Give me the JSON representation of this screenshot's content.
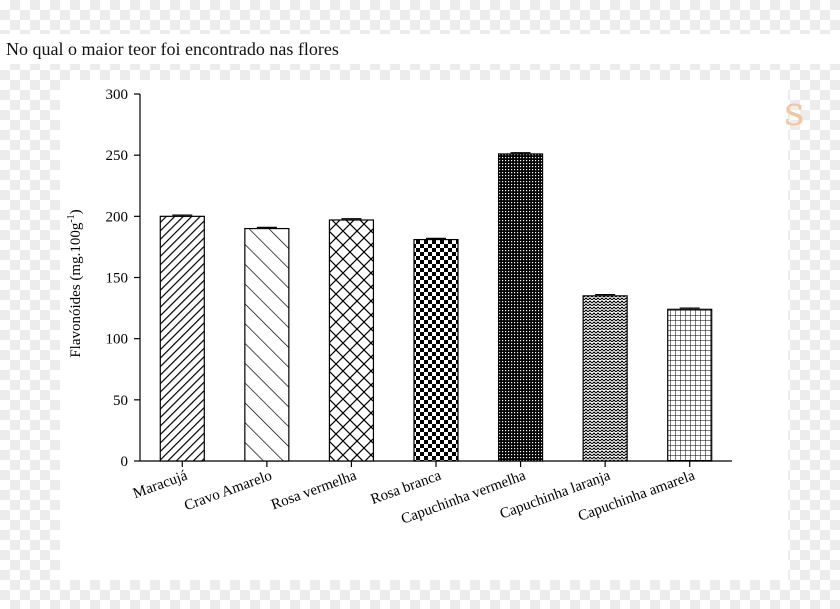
{
  "caption": "No qual o maior teor foi encontrado nas flores",
  "deco_glyph": "s",
  "chart_data": {
    "type": "bar",
    "title": "",
    "ylabel": "Flavonóides (mg.100g",
    "ylabel_sup": "-1",
    "ylabel_close": ")",
    "xlabel": "",
    "ylim": [
      0,
      300
    ],
    "yticks": [
      0,
      50,
      100,
      150,
      200,
      250,
      300
    ],
    "categories": [
      "Maracujá",
      "Cravo Amarelo",
      "Rosa vermelha",
      "Rosa branca",
      "Capuchinha vermelha",
      "Capuchinha laranja",
      "Capuchinha amarela"
    ],
    "values": [
      200,
      190,
      197,
      181,
      251,
      135,
      124
    ],
    "errors": [
      1,
      1,
      1,
      1,
      1,
      1,
      1
    ],
    "patterns": [
      "diag-dense",
      "diag-sparse",
      "crosshatch",
      "checker",
      "dense-grid",
      "wave",
      "grid"
    ],
    "bar_fill": "#ffffff",
    "pattern_color": "#000000"
  }
}
